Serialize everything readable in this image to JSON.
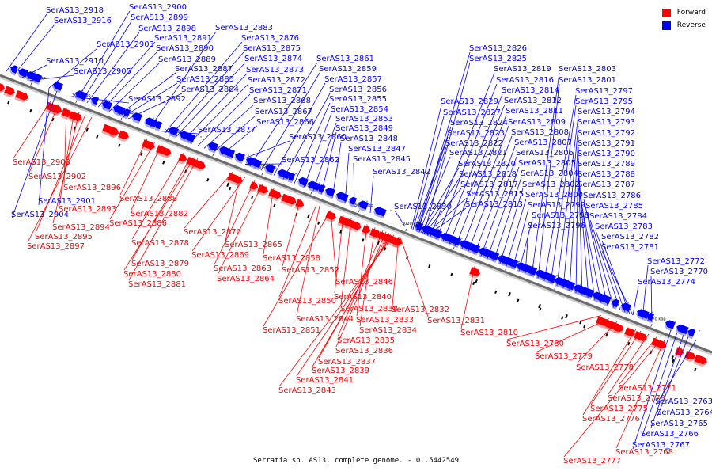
{
  "caption": "Serratia sp. AS13, complete genome. - 0..5442549",
  "legend": [
    {
      "label": "Forward",
      "color": "#ff0000"
    },
    {
      "label": "Reverse",
      "color": "#0000ff"
    }
  ],
  "colors": {
    "forward": "#ff0000",
    "reverse": "#0000ff",
    "backbone": "#6b6b6b"
  },
  "ticks": [
    "3100 kbp",
    "3090 kbp",
    "3080 kbp",
    "3070 kbp",
    "3060 kbp",
    "3050 kbp",
    "3040 kbp",
    "3030 kbp",
    "3020 kbp",
    "3010 kbp",
    "3000 kbp",
    "2990 kbp",
    "2980 kbp",
    "2970 kbp"
  ],
  "reverse_genes": [
    "SerAS13_2918",
    "SerAS13_2916",
    "SerAS13_2900",
    "SerAS13_2899",
    "SerAS13_2898",
    "SerAS13_2903",
    "SerAS13_2891",
    "SerAS13_2890",
    "SerAS13_2889",
    "SerAS13_2910",
    "SerAS13_2905",
    "SerAS13_2887",
    "SerAS13_2885",
    "SerAS13_2884",
    "SerAS13_2892",
    "SerAS13_2883",
    "SerAS13_2876",
    "SerAS13_2875",
    "SerAS13_2874",
    "SerAS13_2873",
    "SerAS13_2872",
    "SerAS13_2871",
    "SerAS13_2868",
    "SerAS13_2867",
    "SerAS13_2866",
    "SerAS13_2877",
    "SerAS13_2861",
    "SerAS13_2859",
    "SerAS13_2857",
    "SerAS13_2856",
    "SerAS13_2855",
    "SerAS13_2854",
    "SerAS13_2853",
    "SerAS13_2849",
    "SerAS13_2848",
    "SerAS13_2847",
    "SerAS13_2845",
    "SerAS13_2860",
    "SerAS13_2862",
    "SerAS13_2842",
    "SerAS13_2826",
    "SerAS13_2825",
    "SerAS13_2819",
    "SerAS13_2816",
    "SerAS13_2814",
    "SerAS13_2812",
    "SerAS13_2811",
    "SerAS13_2809",
    "SerAS13_2808",
    "SerAS13_2807",
    "SerAS13_2806",
    "SerAS13_2805",
    "SerAS13_2804",
    "SerAS13_2802",
    "SerAS13_2800",
    "SerAS13_2799",
    "SerAS13_2798",
    "SerAS13_2796",
    "SerAS13_2829",
    "SerAS13_2827",
    "SerAS13_2824",
    "SerAS13_2823",
    "SerAS13_2822",
    "SerAS13_2821",
    "SerAS13_2820",
    "SerAS13_2818",
    "SerAS13_2817",
    "SerAS13_2815",
    "SerAS13_2813",
    "SerAS13_2830",
    "SerAS13_2803",
    "SerAS13_2801",
    "SerAS13_2797",
    "SerAS13_2795",
    "SerAS13_2794",
    "SerAS13_2793",
    "SerAS13_2792",
    "SerAS13_2791",
    "SerAS13_2790",
    "SerAS13_2789",
    "SerAS13_2788",
    "SerAS13_2787",
    "SerAS13_2786",
    "SerAS13_2785",
    "SerAS13_2784",
    "SerAS13_2783",
    "SerAS13_2782",
    "SerAS13_2781",
    "SerAS13_2772",
    "SerAS13_2770",
    "SerAS13_2774",
    "SerAS13_2901",
    "SerAS13_2904",
    "SerAS13_2763",
    "SerAS13_2764",
    "SerAS13_2765",
    "SerAS13_2766",
    "SerAS13_2767"
  ],
  "forward_genes": [
    "SerAS13_2908",
    "SerAS13_2902",
    "SerAS13_2896",
    "SerAS13_2893",
    "SerAS13_2894",
    "SerAS13_2895",
    "SerAS13_2897",
    "SerAS13_2888",
    "SerAS13_2882",
    "SerAS13_2886",
    "SerAS13_2878",
    "SerAS13_2879",
    "SerAS13_2880",
    "SerAS13_2881",
    "SerAS13_2870",
    "SerAS13_2865",
    "SerAS13_2869",
    "SerAS13_2863",
    "SerAS13_2864",
    "SerAS13_2858",
    "SerAS13_2852",
    "SerAS13_2846",
    "SerAS13_2850",
    "SerAS13_2840",
    "SerAS13_2838",
    "SerAS13_2844",
    "SerAS13_2851",
    "SerAS13_2833",
    "SerAS13_2834",
    "SerAS13_2835",
    "SerAS13_2836",
    "SerAS13_2837",
    "SerAS13_2839",
    "SerAS13_2841",
    "SerAS13_2843",
    "SerAS13_2832",
    "SerAS13_2831",
    "SerAS13_2810",
    "SerAS13_2780",
    "SerAS13_2779",
    "SerAS13_2778",
    "SerAS13_2771",
    "SerAS13_2773",
    "SerAS13_2775",
    "SerAS13_2776",
    "SerAS13_2768",
    "SerAS13_2777"
  ]
}
